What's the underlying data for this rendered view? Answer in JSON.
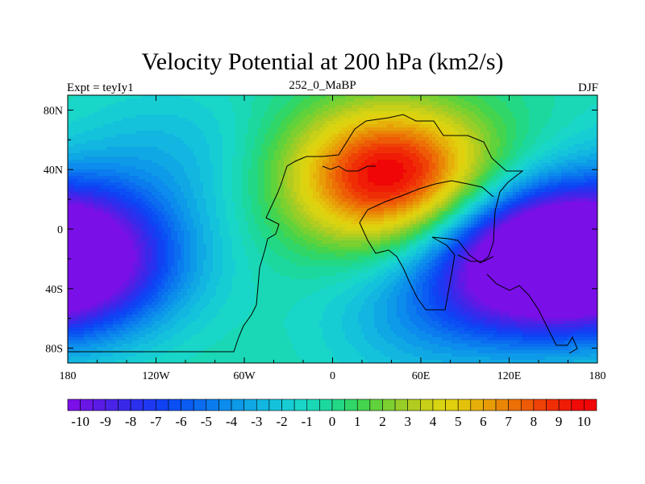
{
  "chart_data": {
    "type": "heatmap",
    "title": "Velocity Potential at 200 hPa (km2/s)",
    "subtitle_left": "Expt = teyIy1",
    "subtitle_center": "252_0_MaBP",
    "subtitle_right": "DJF",
    "x_ticks": [
      "180",
      "120W",
      "60W",
      "0",
      "60E",
      "120E",
      "180"
    ],
    "x_tick_values": [
      -180,
      -120,
      -60,
      0,
      60,
      120,
      180
    ],
    "y_ticks": [
      "80N",
      "40N",
      "0",
      "40S",
      "80S"
    ],
    "y_tick_values": [
      80,
      40,
      0,
      -40,
      -80
    ],
    "xlim": [
      -180,
      180
    ],
    "ylim": [
      -90,
      90
    ],
    "colorbar": {
      "labels": [
        "-10",
        "-9",
        "-8",
        "-7",
        "-6",
        "-5",
        "-4",
        "-3",
        "-2",
        "-1",
        "0",
        "1",
        "2",
        "3",
        "4",
        "5",
        "6",
        "7",
        "8",
        "9",
        "10"
      ],
      "label_values": [
        -10,
        -9,
        -8,
        -7,
        -6,
        -5,
        -4,
        -3,
        -2,
        -1,
        0,
        1,
        2,
        3,
        4,
        5,
        6,
        7,
        8,
        9,
        10
      ],
      "levels": [
        -10,
        -9.5,
        -9,
        -8.5,
        -8,
        -7.5,
        -7,
        -6.5,
        -6,
        -5.5,
        -5,
        -4.5,
        -4,
        -3.5,
        -3,
        -2.5,
        -2,
        -1.5,
        -1,
        -0.5,
        0,
        0.5,
        1,
        1.5,
        2,
        2.5,
        3,
        3.5,
        4,
        4.5,
        5,
        5.5,
        6,
        6.5,
        7,
        7.5,
        8,
        8.5,
        9,
        9.5,
        10
      ],
      "colors": [
        "#7a0fe8",
        "#6a16e6",
        "#5a1be6",
        "#4a23e8",
        "#3a28ea",
        "#2b30ee",
        "#1e38f2",
        "#1042f4",
        "#0a4ef4",
        "#0a5cf2",
        "#0b6cf0",
        "#0b7cee",
        "#0c8cec",
        "#0d9ae8",
        "#0fa8e4",
        "#12b6e0",
        "#14c2dc",
        "#16cdd4",
        "#18d6c8",
        "#1ad8b6",
        "#1cd89e",
        "#22d884",
        "#30d668",
        "#44d44e",
        "#60d23c",
        "#7cd030",
        "#98ce28",
        "#b2cc20",
        "#c8d018",
        "#d8d412",
        "#e0d00e",
        "#e4c20c",
        "#e6b00a",
        "#e89c08",
        "#ea8606",
        "#ec7006",
        "#ee5a06",
        "#ef4206",
        "#f02e06",
        "#f01c06",
        "#f00a08",
        "#f00606"
      ]
    },
    "field_centers": [
      {
        "lon": 40,
        "lat": 35,
        "value": 11
      },
      {
        "lon": 130,
        "lat": -20,
        "value": -10.5
      },
      {
        "lon": -175,
        "lat": -20,
        "value": -10.5
      },
      {
        "lon": -110,
        "lat": 50,
        "value": -2
      },
      {
        "lon": 60,
        "lat": -60,
        "value": -2.5
      }
    ]
  }
}
